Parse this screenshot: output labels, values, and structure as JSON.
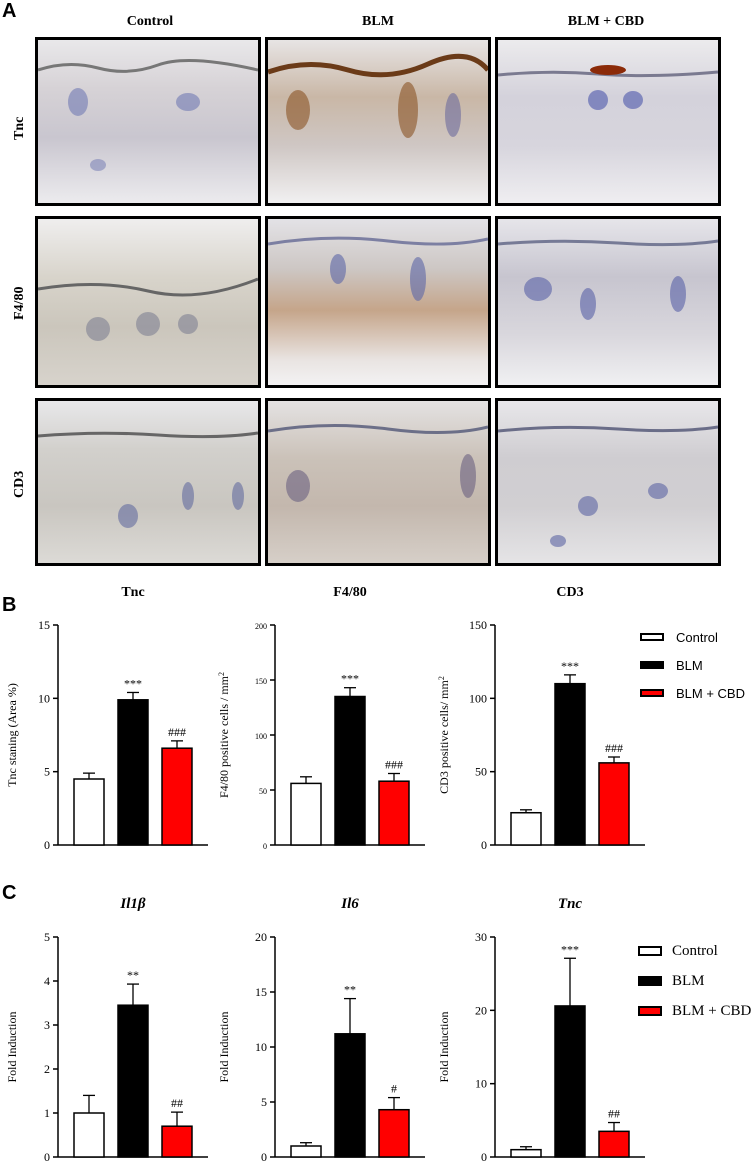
{
  "panel_a": {
    "letter": "A",
    "columns": [
      "Control",
      "BLM",
      "BLM + CBD"
    ],
    "rows": [
      "Tnc",
      "F4/80",
      "CD3"
    ]
  },
  "panel_b": {
    "letter": "B"
  },
  "panel_c": {
    "letter": "C"
  },
  "colors": {
    "control": "#ffffff",
    "blm": "#000000",
    "blm_cbd": "#ff0000"
  },
  "chart_data": [
    {
      "type": "bar",
      "panel": "B",
      "title": "Tnc",
      "ylabel": "Tnc staning (Area  %)",
      "categories": [
        "Control",
        "BLM",
        "BLM + CBD"
      ],
      "values": [
        4.5,
        9.9,
        6.6
      ],
      "errors": [
        0.4,
        0.5,
        0.5
      ],
      "annotations": [
        "",
        "***",
        "###"
      ],
      "ylim": [
        0,
        15
      ],
      "yticks": [
        "0",
        "5",
        "10",
        "15"
      ],
      "tickvals": [
        0,
        5,
        10,
        15
      ]
    },
    {
      "type": "bar",
      "panel": "B",
      "title": "F4/80",
      "ylabel": "F4/80 positive cells / mm",
      "ylabel_sup": "2",
      "categories": [
        "Control",
        "BLM",
        "BLM + CBD"
      ],
      "values": [
        56,
        135,
        58
      ],
      "errors": [
        6,
        8,
        7
      ],
      "annotations": [
        "",
        "***",
        "###"
      ],
      "ylim": [
        0,
        200
      ],
      "yticks": [
        "0",
        "50",
        "100",
        "150",
        "200"
      ],
      "tickvals": [
        0,
        50,
        100,
        150,
        200
      ]
    },
    {
      "type": "bar",
      "panel": "B",
      "title": "CD3",
      "ylabel": "CD3 positive cells/ mm",
      "ylabel_sup": "2",
      "categories": [
        "Control",
        "BLM",
        "BLM + CBD"
      ],
      "values": [
        22,
        110,
        56
      ],
      "errors": [
        2,
        6,
        4
      ],
      "annotations": [
        "",
        "***",
        "###"
      ],
      "ylim": [
        0,
        150
      ],
      "yticks": [
        "0",
        "50",
        "100",
        "150"
      ],
      "tickvals": [
        0,
        50,
        100,
        150
      ]
    },
    {
      "type": "bar",
      "panel": "C",
      "title": "Il1β",
      "ylabel": "Fold Induction",
      "categories": [
        "Control",
        "BLM",
        "BLM + CBD"
      ],
      "values": [
        1.0,
        3.45,
        0.7
      ],
      "errors": [
        0.4,
        0.48,
        0.32
      ],
      "annotations": [
        "",
        "**",
        "##"
      ],
      "ylim": [
        0,
        5
      ],
      "yticks": [
        "0",
        "1",
        "2",
        "3",
        "4",
        "5"
      ],
      "tickvals": [
        0,
        1,
        2,
        3,
        4,
        5
      ]
    },
    {
      "type": "bar",
      "panel": "C",
      "title": "Il6",
      "ylabel": "Fold Induction",
      "categories": [
        "Control",
        "BLM",
        "BLM + CBD"
      ],
      "values": [
        1.0,
        11.2,
        4.3
      ],
      "errors": [
        0.3,
        3.2,
        1.1
      ],
      "annotations": [
        "",
        "**",
        "#"
      ],
      "ylim": [
        0,
        20
      ],
      "yticks": [
        "0",
        "5",
        "10",
        "15",
        "20"
      ],
      "tickvals": [
        0,
        5,
        10,
        15,
        20
      ]
    },
    {
      "type": "bar",
      "panel": "C",
      "title": "Tnc",
      "ylabel": "Fold Induction",
      "categories": [
        "Control",
        "BLM",
        "BLM + CBD"
      ],
      "values": [
        1.0,
        20.6,
        3.5
      ],
      "errors": [
        0.4,
        6.5,
        1.2
      ],
      "annotations": [
        "",
        "***",
        "##"
      ],
      "ylim": [
        0,
        30
      ],
      "yticks": [
        "0",
        "10",
        "20",
        "30"
      ],
      "tickvals": [
        0,
        10,
        20,
        30
      ]
    }
  ],
  "legends": {
    "B": [
      "Control",
      "BLM",
      "BLM + CBD"
    ],
    "C": [
      "Control",
      "BLM",
      "BLM + CBD"
    ]
  }
}
